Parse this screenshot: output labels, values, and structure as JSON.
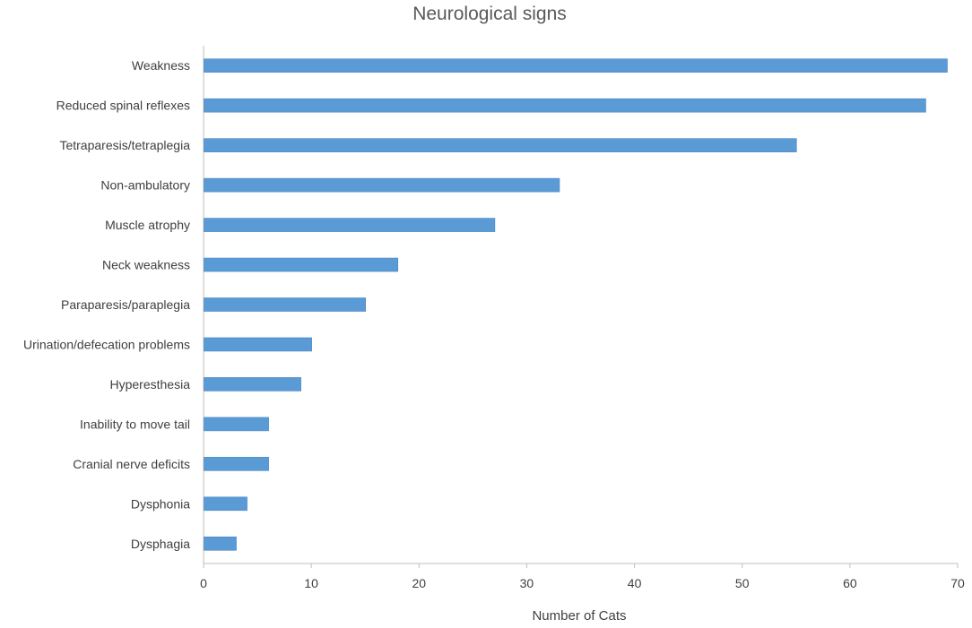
{
  "chart_data": {
    "type": "bar",
    "orientation": "horizontal",
    "title": "Neurological signs",
    "xlabel": "Number of Cats",
    "ylabel": "",
    "categories": [
      "Weakness",
      "Reduced spinal reflexes",
      "Tetraparesis/tetraplegia",
      "Non-ambulatory",
      "Muscle atrophy",
      "Neck weakness",
      "Paraparesis/paraplegia",
      "Urination/defecation problems",
      "Hyperesthesia",
      "Inability to move tail",
      "Cranial nerve deficits",
      "Dysphonia",
      "Dysphagia"
    ],
    "values": [
      69,
      67,
      55,
      33,
      27,
      18,
      15,
      10,
      9,
      6,
      6,
      4,
      3
    ],
    "xlim": [
      0,
      70
    ],
    "xticks": [
      "0",
      "10",
      "20",
      "30",
      "40",
      "50",
      "60",
      "70"
    ],
    "grid": false,
    "legend": "none",
    "colors": {
      "bar": "#5b9bd5",
      "bar_edge": "#4a86c2",
      "axis": "#bfbfbf",
      "text": "#404040",
      "title": "#595959"
    }
  }
}
